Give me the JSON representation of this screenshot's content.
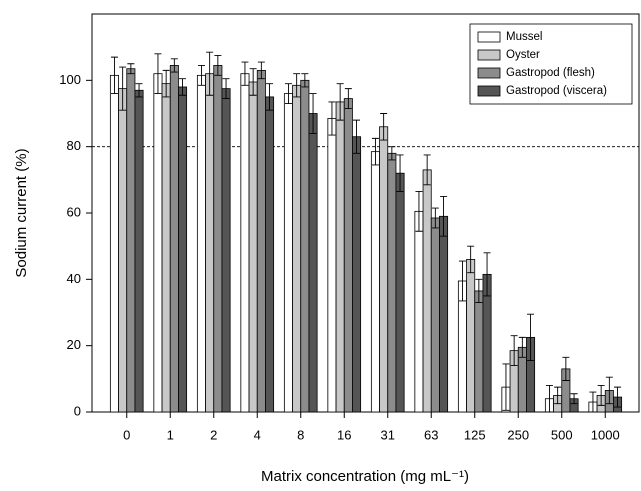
{
  "chart_data": {
    "type": "bar",
    "y_label": "Sodium current (%)",
    "x_label": "Matrix concentration (mg mL⁻¹)",
    "categories": [
      "0",
      "1",
      "2",
      "4",
      "8",
      "16",
      "31",
      "63",
      "125",
      "250",
      "500",
      "1000"
    ],
    "series": [
      {
        "name": "Mussel",
        "color": "#ffffff",
        "values": [
          101.5,
          102,
          101.5,
          102,
          96,
          88.5,
          78.5,
          60.5,
          39.5,
          7.5,
          4,
          3
        ],
        "errors": [
          5.5,
          6,
          3,
          3.5,
          3,
          5,
          4,
          6,
          6,
          7,
          4,
          3
        ]
      },
      {
        "name": "Oyster",
        "color": "#c8c8c8",
        "values": [
          97.5,
          99,
          102,
          99.5,
          98.5,
          93.5,
          86,
          73,
          46,
          18.5,
          5,
          5
        ],
        "errors": [
          6.5,
          4,
          6.5,
          4,
          3.5,
          5.5,
          4,
          4.5,
          4,
          4.5,
          2.5,
          3
        ]
      },
      {
        "name": "Gastropod (flesh)",
        "color": "#8c8c8c",
        "values": [
          103.5,
          104.5,
          104.5,
          103,
          100,
          94.5,
          78,
          58.5,
          36.5,
          19.5,
          13,
          6.5
        ],
        "errors": [
          1.5,
          2,
          3,
          2.5,
          2,
          3,
          2,
          3,
          3.5,
          3,
          3.5,
          4
        ]
      },
      {
        "name": "Gastropod (viscera)",
        "color": "#555555",
        "values": [
          97,
          98,
          97.5,
          95,
          90,
          83,
          72,
          59,
          41.5,
          22.5,
          4,
          4.5
        ],
        "errors": [
          2,
          2.5,
          3,
          4,
          6,
          5,
          5.5,
          6,
          6.5,
          7,
          1.5,
          3
        ]
      }
    ],
    "ylim": [
      0,
      120
    ],
    "yticks": [
      0,
      20,
      40,
      60,
      80,
      100
    ],
    "reference_line": 80,
    "legend": "top-right"
  }
}
